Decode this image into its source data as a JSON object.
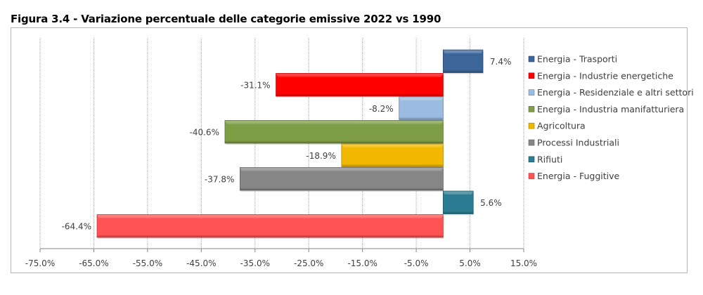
{
  "figure": {
    "title": "Figura 3.4 - Variazione percentuale delle categorie emissive 2022 vs 1990"
  },
  "chart_data": {
    "type": "bar",
    "orientation": "horizontal",
    "title": "Figura 3.4 - Variazione percentuale delle categorie emissive 2022 vs 1990",
    "xlabel": "",
    "ylabel": "",
    "xlim": [
      -75.0,
      15.0
    ],
    "x_ticks": [
      -75.0,
      -65.0,
      -55.0,
      -45.0,
      -35.0,
      -25.0,
      -15.0,
      -5.0,
      5.0,
      15.0
    ],
    "x_tick_labels": [
      "-75.0%",
      "-65.0%",
      "-55.0%",
      "-45.0%",
      "-35.0%",
      "-25.0%",
      "-15.0%",
      "-5.0%",
      "5.0%",
      "15.0%"
    ],
    "grid": "vertical-dotted",
    "legend_position": "right",
    "series": [
      {
        "name": "Energia - Trasporti",
        "value": 7.4,
        "label": "7.4%",
        "color": "#3c6599"
      },
      {
        "name": "Energia - Industrie energetiche",
        "value": -31.1,
        "label": "-31.1%",
        "color": "#ff0000"
      },
      {
        "name": "Energia - Residenziale e altri settori",
        "value": -8.2,
        "label": "-8.2%",
        "color": "#9cbbe0"
      },
      {
        "name": "Energia - Industria manifatturiera",
        "value": -40.6,
        "label": "-40.6%",
        "color": "#7f9d45"
      },
      {
        "name": "Agricoltura",
        "value": -18.9,
        "label": "-18.9%",
        "color": "#f0b800"
      },
      {
        "name": "Processi Industriali",
        "value": -37.8,
        "label": "-37.8%",
        "color": "#868686"
      },
      {
        "name": "Rifiuti",
        "value": 5.6,
        "label": "5.6%",
        "color": "#2b7c92"
      },
      {
        "name": "Energia - Fuggitive",
        "value": -64.4,
        "label": "-64.4%",
        "color": "#fe5254"
      }
    ]
  }
}
